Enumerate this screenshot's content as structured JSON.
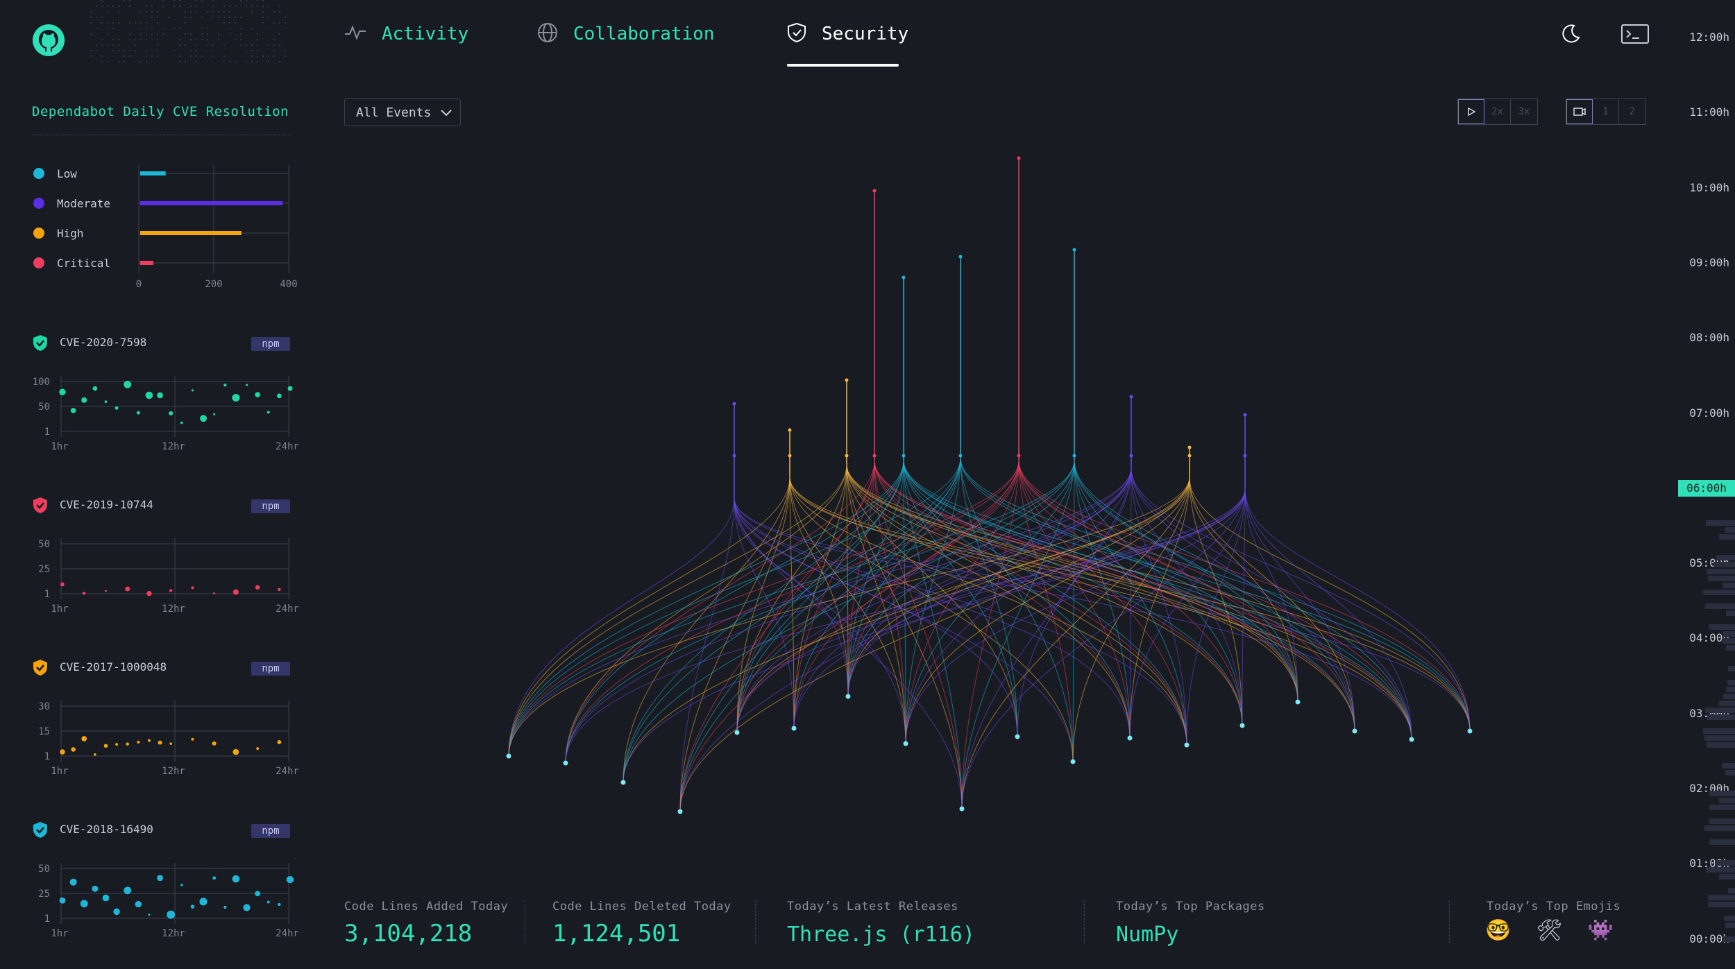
{
  "nav": {
    "tabs": [
      {
        "label": "Activity",
        "icon": "activity-icon"
      },
      {
        "label": "Collaboration",
        "icon": "globe-icon"
      },
      {
        "label": "Security",
        "icon": "shield-check-icon",
        "active": true
      }
    ],
    "right_icons": [
      "moon-icon",
      "terminal-icon"
    ]
  },
  "sidebar": {
    "title": "Dependabot Daily CVE Resolution",
    "severity": [
      {
        "label": "Low",
        "value": 68,
        "color": "#1eb7d8"
      },
      {
        "label": "Moderate",
        "value": 380,
        "color": "#5b2ee6"
      },
      {
        "label": "High",
        "value": 270,
        "color": "#f5a30f"
      },
      {
        "label": "Critical",
        "value": 35,
        "color": "#ee3e5e"
      }
    ],
    "severity_axis": [
      "0",
      "200",
      "400"
    ],
    "cves": [
      {
        "id": "CVE-2020-7598",
        "badge": "npm",
        "color": "#1fd6a4",
        "yticks": [
          "100",
          "50",
          "1"
        ]
      },
      {
        "id": "CVE-2019-10744",
        "badge": "npm",
        "color": "#ee3e5e",
        "yticks": [
          "50",
          "25",
          "1"
        ]
      },
      {
        "id": "CVE-2017-1000048",
        "badge": "npm",
        "color": "#f5a30f",
        "yticks": [
          "30",
          "15",
          "1"
        ]
      },
      {
        "id": "CVE-2018-16490",
        "badge": "npm",
        "color": "#1eb7d8",
        "yticks": [
          "50",
          "25",
          "1"
        ]
      }
    ],
    "xticks": [
      "1hr",
      "12hr",
      "24hr"
    ]
  },
  "controls": {
    "filter_label": "All Events",
    "speed": [
      "2x",
      "3x"
    ],
    "camera": [
      "1",
      "2"
    ]
  },
  "stats": [
    {
      "label": "Code Lines Added Today",
      "value": "3,104,218"
    },
    {
      "label": "Code Lines Deleted Today",
      "value": "1,124,501"
    },
    {
      "label": "Today’s Latest Releases",
      "value": "Three.js (r116)"
    },
    {
      "label": "Today’s Top Packages",
      "value": "NumPy"
    },
    {
      "label": "Today’s Top Emojis",
      "value": ""
    }
  ],
  "emojis": [
    "🤓",
    "🛠",
    "👾"
  ],
  "timeline": {
    "labels": [
      "12:00h",
      "11:00h",
      "10:00h",
      "09:00h",
      "08:00h",
      "07:00h",
      "06:00h",
      "05:00h",
      "04:00h",
      "03:00h",
      "02:00h",
      "01:00h",
      "00:00h"
    ],
    "current": "06:00h"
  },
  "colors": {
    "accent": "#2fe0b8",
    "background": "#191b22"
  }
}
